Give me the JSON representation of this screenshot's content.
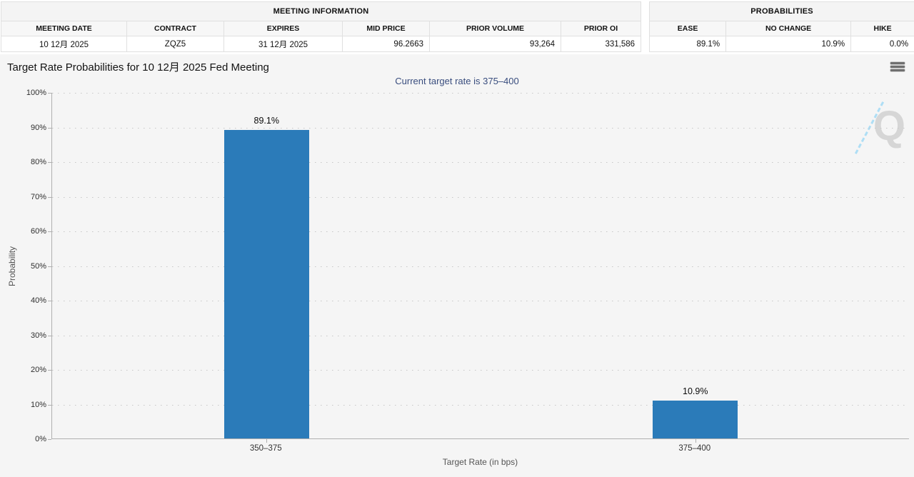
{
  "meeting_info": {
    "title": "MEETING INFORMATION",
    "columns": [
      "MEETING DATE",
      "CONTRACT",
      "EXPIRES",
      "MID PRICE",
      "PRIOR VOLUME",
      "PRIOR OI"
    ],
    "values": [
      "10 12月 2025",
      "ZQZ5",
      "31 12月 2025",
      "96.2663",
      "93,264",
      "331,586"
    ]
  },
  "probabilities_info": {
    "title": "PROBABILITIES",
    "columns": [
      "EASE",
      "NO CHANGE",
      "HIKE"
    ],
    "values": [
      "89.1%",
      "10.9%",
      "0.0%"
    ]
  },
  "chart": {
    "title": "Target Rate Probabilities for 10 12月 2025 Fed Meeting",
    "subtitle": "Current target rate is 375–400",
    "watermark_letter": "Q"
  },
  "colors": {
    "bar": "#2b7bb9",
    "subtitle": "#394d7e",
    "watermark_gray": "#d6d6d6",
    "watermark_blue": "#aedef5",
    "background": "#f5f5f5"
  },
  "chart_data": {
    "type": "bar",
    "title": "Target Rate Probabilities for 10 12月 2025 Fed Meeting",
    "subtitle": "Current target rate is 375–400",
    "categories": [
      "350–375",
      "375–400"
    ],
    "values": [
      89.1,
      10.9
    ],
    "bar_labels": [
      "89.1%",
      "10.9%"
    ],
    "xlabel": "Target Rate (in bps)",
    "ylabel": "Probability",
    "ylim": [
      0,
      100
    ],
    "ytick_step": 10,
    "ytick_suffix": "%",
    "grid": "dotted-horizontal",
    "legend": "none"
  }
}
